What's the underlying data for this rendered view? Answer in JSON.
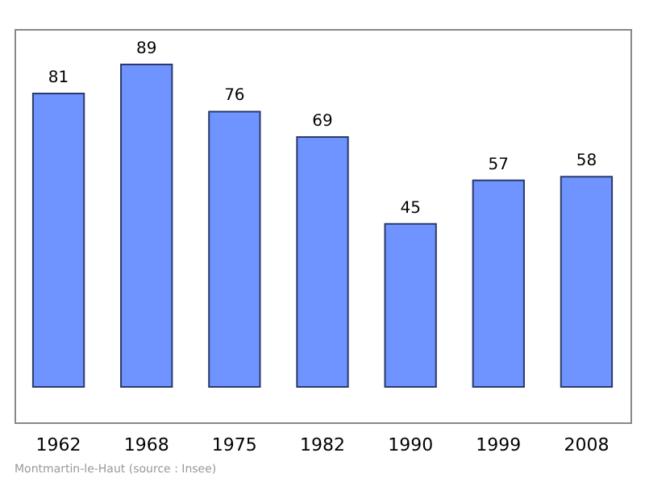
{
  "chart_data": {
    "type": "bar",
    "categories": [
      "1962",
      "1968",
      "1975",
      "1982",
      "1990",
      "1999",
      "2008"
    ],
    "values": [
      81,
      89,
      76,
      69,
      45,
      57,
      58
    ],
    "color": "#7094ff",
    "data_labels": true,
    "annotations": [
      "Montmartin-le-Haut    (source : Insee)"
    ]
  }
}
